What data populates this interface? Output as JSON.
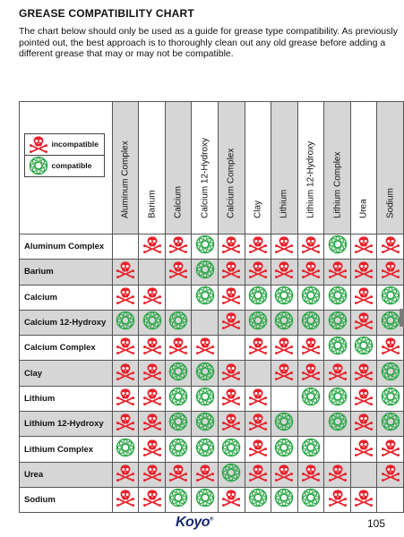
{
  "document": {
    "title": "GREASE COMPATIBILITY CHART",
    "intro": "The chart below should only be used as a guide for grease type compatibility.  As previously pointed out, the best approach is to thoroughly clean out any old grease before adding a different grease that may or may not be compatible.",
    "logo": "Koyo",
    "logo_mark": "®",
    "page_number": "105"
  },
  "legend": {
    "incompatible_label": "incompatible",
    "compatible_label": "compatible",
    "incompatible_icon": "skull-crossbones-icon",
    "compatible_icon": "bearing-ring-icon",
    "incompatible_color": "#e8202a",
    "compatible_color": "#2ea84a"
  },
  "columns": [
    "Aluminum Complex",
    "Barium",
    "Calcium",
    "Calcium 12-Hydroxy",
    "Calcium Complex",
    "Clay",
    "Lithium",
    "Lithium 12-Hydroxy",
    "Lithium Complex",
    "Urea",
    "Sodium"
  ],
  "rows": [
    {
      "label": "Aluminum Complex",
      "cells": [
        "",
        "X",
        "X",
        "C",
        "X",
        "X",
        "X",
        "X",
        "C",
        "X",
        "X"
      ]
    },
    {
      "label": "Barium",
      "cells": [
        "X",
        "",
        "X",
        "C",
        "X",
        "X",
        "X",
        "X",
        "X",
        "X",
        "X"
      ]
    },
    {
      "label": "Calcium",
      "cells": [
        "X",
        "X",
        "",
        "C",
        "X",
        "C",
        "C",
        "C",
        "C",
        "X",
        "C"
      ]
    },
    {
      "label": "Calcium 12-Hydroxy",
      "cells": [
        "C",
        "C",
        "C",
        "",
        "X",
        "C",
        "C",
        "C",
        "C",
        "X",
        "C"
      ]
    },
    {
      "label": "Calcium Complex",
      "cells": [
        "X",
        "X",
        "X",
        "X",
        "",
        "X",
        "X",
        "X",
        "C",
        "C",
        "X"
      ]
    },
    {
      "label": "Clay",
      "cells": [
        "X",
        "X",
        "C",
        "C",
        "X",
        "",
        "X",
        "X",
        "X",
        "X",
        "C"
      ]
    },
    {
      "label": "Lithium",
      "cells": [
        "X",
        "X",
        "C",
        "C",
        "X",
        "X",
        "",
        "C",
        "C",
        "X",
        "C"
      ]
    },
    {
      "label": "Lithium 12-Hydroxy",
      "cells": [
        "X",
        "X",
        "C",
        "C",
        "X",
        "X",
        "C",
        "",
        "C",
        "X",
        "C"
      ]
    },
    {
      "label": "Lithium Complex",
      "cells": [
        "C",
        "X",
        "C",
        "C",
        "C",
        "X",
        "C",
        "C",
        "",
        "X",
        "X"
      ]
    },
    {
      "label": "Urea",
      "cells": [
        "X",
        "X",
        "X",
        "X",
        "C",
        "X",
        "X",
        "X",
        "X",
        "",
        "X"
      ]
    },
    {
      "label": "Sodium",
      "cells": [
        "X",
        "X",
        "C",
        "C",
        "X",
        "C",
        "C",
        "C",
        "X",
        "X",
        ""
      ]
    }
  ]
}
